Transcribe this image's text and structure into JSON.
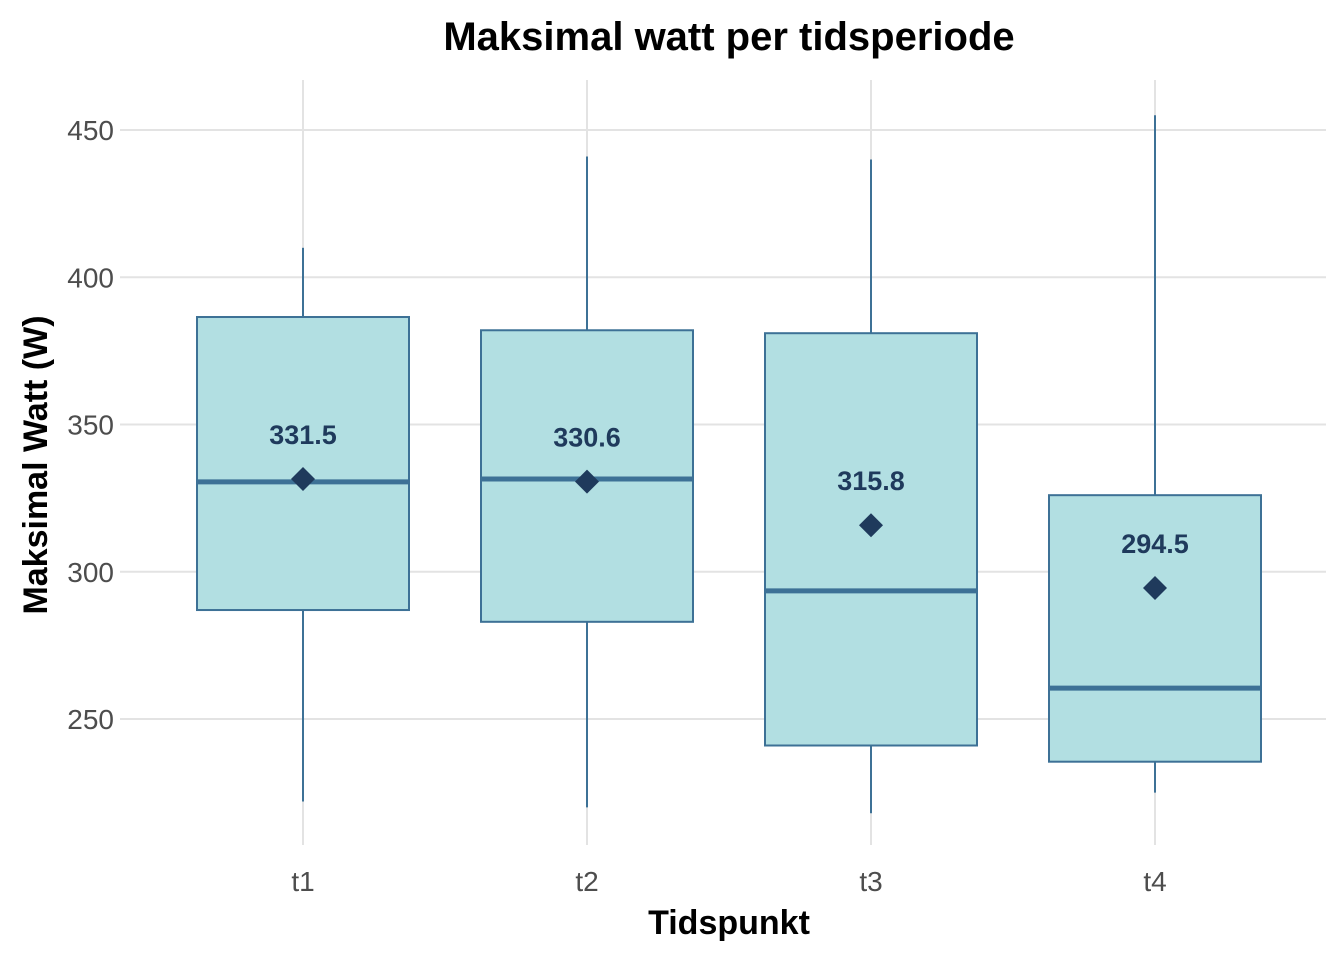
{
  "chart_data": {
    "type": "boxplot",
    "title": "Maksimal watt per tidsperiode",
    "xlabel": "Tidspunkt",
    "ylabel": "Maksimal Watt (W)",
    "categories": [
      "t1",
      "t2",
      "t3",
      "t4"
    ],
    "ylim": [
      205,
      467
    ],
    "yticks": [
      250,
      300,
      350,
      400,
      450
    ],
    "grid": true,
    "legend": "none",
    "boxes": [
      {
        "category": "t1",
        "min": 222,
        "q1": 287,
        "median": 330.5,
        "q3": 386.5,
        "max": 410,
        "mean": 331.5,
        "mean_label": "331.5"
      },
      {
        "category": "t2",
        "min": 220,
        "q1": 283,
        "median": 331.5,
        "q3": 382,
        "max": 441,
        "mean": 330.6,
        "mean_label": "330.6"
      },
      {
        "category": "t3",
        "min": 218,
        "q1": 241,
        "median": 293.5,
        "q3": 381,
        "max": 440,
        "mean": 315.8,
        "mean_label": "315.8"
      },
      {
        "category": "t4",
        "min": 225,
        "q1": 235.5,
        "median": 260.5,
        "q3": 326,
        "max": 455,
        "mean": 294.5,
        "mean_label": "294.5"
      }
    ],
    "colors": {
      "box_fill": "#b2dfe2",
      "box_stroke": "#3d7196",
      "median": "#3d7196",
      "mean_marker": "#1f3a5c"
    }
  }
}
